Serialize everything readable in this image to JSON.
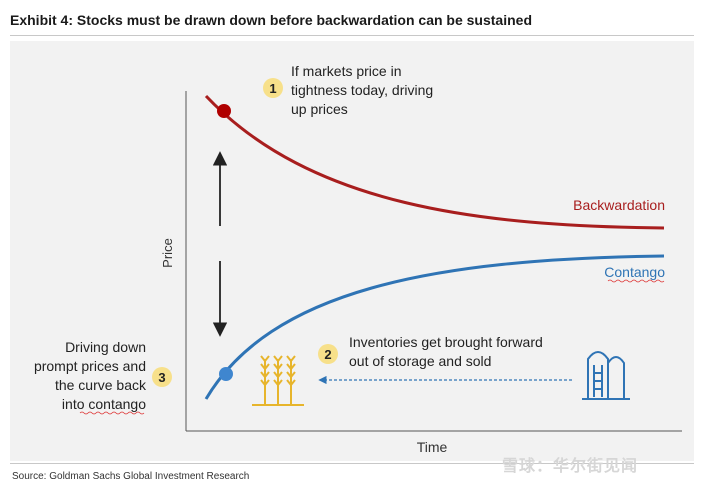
{
  "header": {
    "title": "Exhibit 4: Stocks must be drawn down before backwardation can be sustained"
  },
  "axes": {
    "ylabel": "Price",
    "xlabel": "Time"
  },
  "curves": {
    "backwardation_label": "Backwardation",
    "contango_label": "Contango"
  },
  "colors": {
    "backwardation": "#a81e1e",
    "contango": "#2f74b5",
    "badge": "#f7e08a",
    "wheat": "#e7b52c",
    "arrow": "#222222"
  },
  "annotations": [
    {
      "number": "1",
      "lines": [
        "If markets price in",
        "tightness today, driving",
        "up prices"
      ]
    },
    {
      "number": "2",
      "lines": [
        "Inventories get brought forward",
        "out of storage and sold"
      ]
    },
    {
      "number": "3",
      "lines": [
        "Driving down",
        "prompt prices and",
        "the curve back",
        "into contango"
      ]
    }
  ],
  "icons": {
    "wheat": "wheat-icon",
    "silo": "silo-icon"
  },
  "footer": {
    "source": "Source: Goldman Sachs Global Investment Research",
    "watermark": "雪球：华尔街见闻"
  }
}
